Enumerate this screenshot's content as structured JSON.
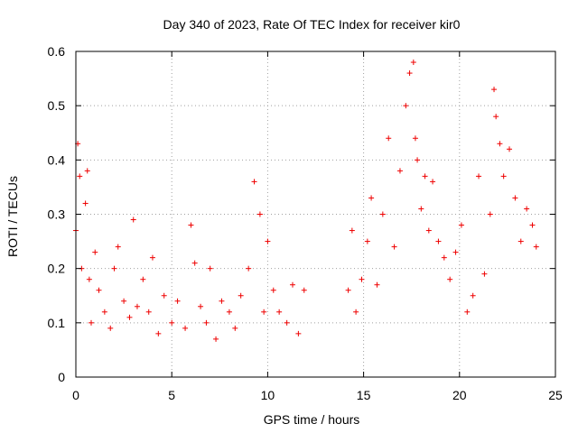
{
  "chart_data": {
    "type": "scatter",
    "title": "Day 340 of 2023, Rate Of TEC Index for receiver kir0",
    "xlabel": "GPS time / hours",
    "ylabel": "ROTI / TECUs",
    "xlim": [
      0,
      25
    ],
    "ylim": [
      0,
      0.6
    ],
    "xticks": [
      "0",
      "5",
      "10",
      "15",
      "20",
      "25"
    ],
    "yticks": [
      "0",
      "0.1",
      "0.2",
      "0.3",
      "0.4",
      "0.5",
      "0.6"
    ],
    "grid": true,
    "marker": "plus",
    "color": "#ee0000",
    "series": [
      {
        "x": [
          0.0,
          0.1,
          0.2,
          0.3,
          0.5,
          0.6,
          0.7,
          0.8,
          1.0,
          1.2,
          1.5,
          1.8,
          2.0,
          2.2,
          2.5,
          2.8,
          3.0,
          3.2,
          3.5,
          3.8,
          4.0,
          4.3,
          4.6,
          5.0,
          5.3,
          5.7,
          6.0,
          6.2,
          6.5,
          6.8,
          7.0,
          7.3,
          7.6,
          8.0,
          8.3,
          8.6,
          9.0,
          9.3,
          9.6,
          9.8,
          10.0,
          10.3,
          10.6,
          11.0,
          11.3,
          11.6,
          11.9,
          14.2,
          14.4,
          14.6,
          14.9,
          15.2,
          15.4,
          15.7,
          16.0,
          16.3,
          16.6,
          16.9,
          17.2,
          17.4,
          17.6,
          17.7,
          17.8,
          18.0,
          18.2,
          18.4,
          18.6,
          18.9,
          19.2,
          19.5,
          19.8,
          20.1,
          20.4,
          20.7,
          21.0,
          21.3,
          21.6,
          21.8,
          21.9,
          22.1,
          22.3,
          22.6,
          22.9,
          23.2,
          23.5,
          23.8,
          24.0
        ],
        "y": [
          0.27,
          0.43,
          0.37,
          0.2,
          0.32,
          0.38,
          0.18,
          0.1,
          0.23,
          0.16,
          0.12,
          0.09,
          0.2,
          0.24,
          0.14,
          0.11,
          0.29,
          0.13,
          0.18,
          0.12,
          0.22,
          0.08,
          0.15,
          0.1,
          0.14,
          0.09,
          0.28,
          0.21,
          0.13,
          0.1,
          0.2,
          0.07,
          0.14,
          0.12,
          0.09,
          0.15,
          0.2,
          0.36,
          0.3,
          0.12,
          0.25,
          0.16,
          0.12,
          0.1,
          0.17,
          0.08,
          0.16,
          0.16,
          0.27,
          0.12,
          0.18,
          0.25,
          0.33,
          0.17,
          0.3,
          0.44,
          0.24,
          0.38,
          0.5,
          0.56,
          0.58,
          0.44,
          0.4,
          0.31,
          0.37,
          0.27,
          0.36,
          0.25,
          0.22,
          0.18,
          0.23,
          0.28,
          0.12,
          0.15,
          0.37,
          0.19,
          0.3,
          0.53,
          0.48,
          0.43,
          0.37,
          0.42,
          0.33,
          0.25,
          0.31,
          0.28,
          0.24
        ]
      }
    ]
  }
}
